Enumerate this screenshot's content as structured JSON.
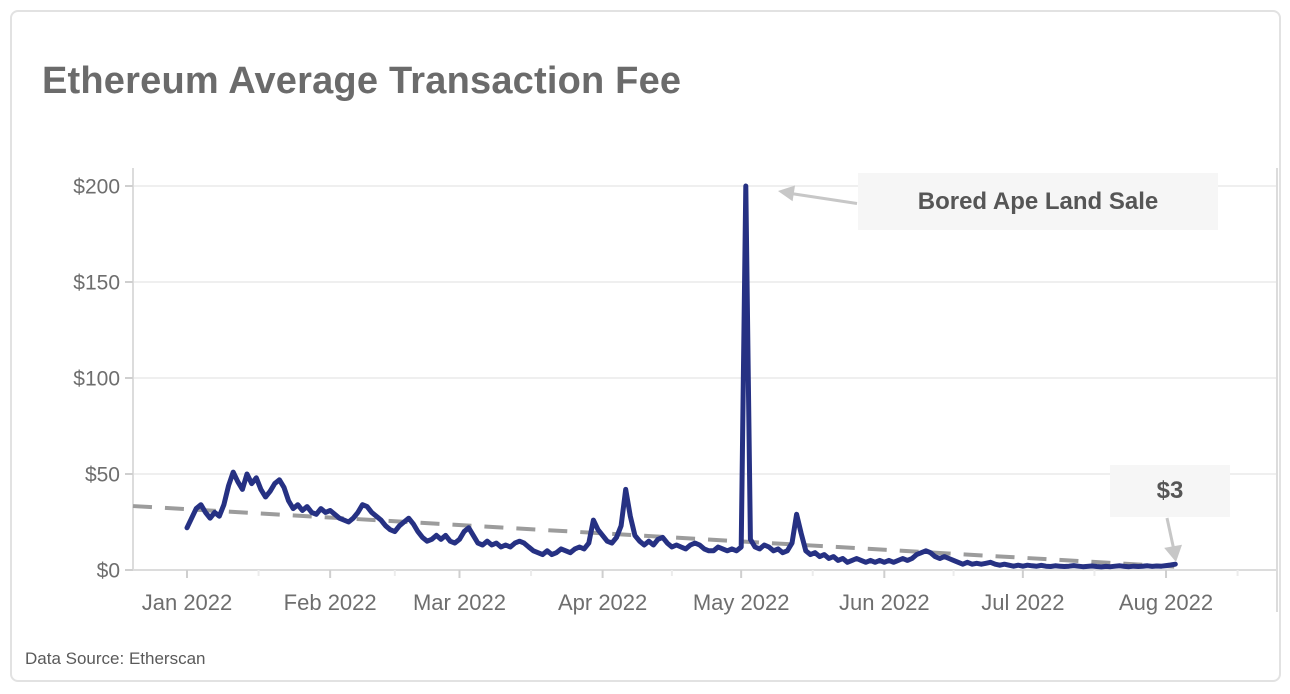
{
  "page": {
    "title": "Ethereum Average Transaction Fee",
    "source_note": "Data Source: Etherscan"
  },
  "annotations": {
    "spike_label": "Bored Ape Land Sale",
    "end_label": "$3"
  },
  "chart_data": {
    "type": "line",
    "title": "Ethereum Average Transaction Fee",
    "x_axis": {
      "unit": "date",
      "tick_labels": [
        "Jan 2022",
        "Feb 2022",
        "Mar 2022",
        "Apr 2022",
        "May 2022",
        "Jun 2022",
        "Jul 2022",
        "Aug 2022"
      ],
      "tick_day_offsets": [
        0,
        31,
        59,
        90,
        120,
        151,
        181,
        212
      ]
    },
    "y_axis": {
      "unit": "USD",
      "tick_labels": [
        "$0",
        "$50",
        "$100",
        "$150",
        "$200"
      ],
      "tick_values": [
        0,
        50,
        100,
        150,
        200
      ],
      "ylim": [
        0,
        200
      ]
    },
    "grid": "horizontal",
    "legend": "none",
    "series": [
      {
        "name": "Ethereum average transaction fee (USD per day)",
        "color": "#263183",
        "points": [
          [
            0,
            22
          ],
          [
            1,
            27
          ],
          [
            2,
            32
          ],
          [
            3,
            34
          ],
          [
            4,
            30
          ],
          [
            5,
            27
          ],
          [
            6,
            30
          ],
          [
            7,
            28
          ],
          [
            8,
            34
          ],
          [
            9,
            44
          ],
          [
            10,
            51
          ],
          [
            11,
            46
          ],
          [
            12,
            42
          ],
          [
            13,
            50
          ],
          [
            14,
            45
          ],
          [
            15,
            48
          ],
          [
            16,
            42
          ],
          [
            17,
            38
          ],
          [
            18,
            41
          ],
          [
            19,
            45
          ],
          [
            20,
            47
          ],
          [
            21,
            43
          ],
          [
            22,
            36
          ],
          [
            23,
            32
          ],
          [
            24,
            34
          ],
          [
            25,
            31
          ],
          [
            26,
            33
          ],
          [
            27,
            30
          ],
          [
            28,
            29
          ],
          [
            29,
            32
          ],
          [
            30,
            30
          ],
          [
            31,
            31
          ],
          [
            32,
            29
          ],
          [
            33,
            27
          ],
          [
            34,
            26
          ],
          [
            35,
            25
          ],
          [
            36,
            27
          ],
          [
            37,
            30
          ],
          [
            38,
            34
          ],
          [
            39,
            33
          ],
          [
            40,
            30
          ],
          [
            41,
            28
          ],
          [
            42,
            26
          ],
          [
            43,
            23
          ],
          [
            44,
            21
          ],
          [
            45,
            20
          ],
          [
            46,
            23
          ],
          [
            47,
            25
          ],
          [
            48,
            27
          ],
          [
            49,
            24
          ],
          [
            50,
            20
          ],
          [
            51,
            17
          ],
          [
            52,
            15
          ],
          [
            53,
            16
          ],
          [
            54,
            18
          ],
          [
            55,
            16
          ],
          [
            56,
            18
          ],
          [
            57,
            15
          ],
          [
            58,
            14
          ],
          [
            59,
            16
          ],
          [
            60,
            20
          ],
          [
            61,
            22
          ],
          [
            62,
            18
          ],
          [
            63,
            14
          ],
          [
            64,
            13
          ],
          [
            65,
            15
          ],
          [
            66,
            13
          ],
          [
            67,
            14
          ],
          [
            68,
            12
          ],
          [
            69,
            13
          ],
          [
            70,
            12
          ],
          [
            71,
            14
          ],
          [
            72,
            15
          ],
          [
            73,
            14
          ],
          [
            74,
            12
          ],
          [
            75,
            10
          ],
          [
            76,
            9
          ],
          [
            77,
            8
          ],
          [
            78,
            10
          ],
          [
            79,
            8
          ],
          [
            80,
            9
          ],
          [
            81,
            11
          ],
          [
            82,
            10
          ],
          [
            83,
            9
          ],
          [
            84,
            11
          ],
          [
            85,
            12
          ],
          [
            86,
            11
          ],
          [
            87,
            14
          ],
          [
            88,
            26
          ],
          [
            89,
            21
          ],
          [
            90,
            18
          ],
          [
            91,
            15
          ],
          [
            92,
            14
          ],
          [
            93,
            17
          ],
          [
            94,
            23
          ],
          [
            95,
            42
          ],
          [
            96,
            28
          ],
          [
            97,
            18
          ],
          [
            98,
            15
          ],
          [
            99,
            13
          ],
          [
            100,
            15
          ],
          [
            101,
            13
          ],
          [
            102,
            16
          ],
          [
            103,
            17
          ],
          [
            104,
            14
          ],
          [
            105,
            12
          ],
          [
            106,
            13
          ],
          [
            107,
            12
          ],
          [
            108,
            11
          ],
          [
            109,
            13
          ],
          [
            110,
            14
          ],
          [
            111,
            13
          ],
          [
            112,
            11
          ],
          [
            113,
            10
          ],
          [
            114,
            10
          ],
          [
            115,
            12
          ],
          [
            116,
            11
          ],
          [
            117,
            10
          ],
          [
            118,
            11
          ],
          [
            119,
            10
          ],
          [
            120,
            12
          ],
          [
            121,
            200
          ],
          [
            122,
            16
          ],
          [
            123,
            12
          ],
          [
            124,
            11
          ],
          [
            125,
            13
          ],
          [
            126,
            12
          ],
          [
            127,
            10
          ],
          [
            128,
            11
          ],
          [
            129,
            9
          ],
          [
            130,
            10
          ],
          [
            131,
            14
          ],
          [
            132,
            29
          ],
          [
            133,
            19
          ],
          [
            134,
            10
          ],
          [
            135,
            8
          ],
          [
            136,
            9
          ],
          [
            137,
            7
          ],
          [
            138,
            8
          ],
          [
            139,
            6
          ],
          [
            140,
            7
          ],
          [
            141,
            5
          ],
          [
            142,
            6
          ],
          [
            143,
            4
          ],
          [
            144,
            5
          ],
          [
            145,
            6
          ],
          [
            146,
            5
          ],
          [
            147,
            4
          ],
          [
            148,
            5
          ],
          [
            149,
            4
          ],
          [
            150,
            5
          ],
          [
            151,
            4
          ],
          [
            152,
            5
          ],
          [
            153,
            4
          ],
          [
            154,
            5
          ],
          [
            155,
            6
          ],
          [
            156,
            5
          ],
          [
            157,
            6
          ],
          [
            158,
            8
          ],
          [
            159,
            9
          ],
          [
            160,
            10
          ],
          [
            161,
            9
          ],
          [
            162,
            7
          ],
          [
            163,
            6
          ],
          [
            164,
            7
          ],
          [
            165,
            6
          ],
          [
            166,
            5
          ],
          [
            167,
            4
          ],
          [
            168,
            3
          ],
          [
            169,
            4
          ],
          [
            170,
            3
          ],
          [
            171,
            3.5
          ],
          [
            172,
            3
          ],
          [
            173,
            3.5
          ],
          [
            174,
            4
          ],
          [
            175,
            3
          ],
          [
            176,
            2.5
          ],
          [
            177,
            3
          ],
          [
            178,
            2.5
          ],
          [
            179,
            2
          ],
          [
            180,
            2.5
          ],
          [
            181,
            2
          ],
          [
            182,
            2.5
          ],
          [
            183,
            2.2
          ],
          [
            184,
            2
          ],
          [
            185,
            2.4
          ],
          [
            186,
            2
          ],
          [
            187,
            1.8
          ],
          [
            188,
            2.2
          ],
          [
            189,
            2
          ],
          [
            190,
            1.8
          ],
          [
            191,
            2
          ],
          [
            192,
            2.3
          ],
          [
            193,
            2
          ],
          [
            194,
            1.7
          ],
          [
            195,
            1.9
          ],
          [
            196,
            2.1
          ],
          [
            197,
            1.8
          ],
          [
            198,
            1.6
          ],
          [
            199,
            1.9
          ],
          [
            200,
            1.7
          ],
          [
            201,
            2
          ],
          [
            202,
            2.2
          ],
          [
            203,
            1.9
          ],
          [
            204,
            1.7
          ],
          [
            205,
            2
          ],
          [
            206,
            1.8
          ],
          [
            207,
            2
          ],
          [
            208,
            2.2
          ],
          [
            209,
            1.9
          ],
          [
            210,
            2.1
          ],
          [
            211,
            2
          ],
          [
            212,
            2.3
          ],
          [
            213,
            2.6
          ],
          [
            214,
            3
          ]
        ]
      }
    ],
    "trend": {
      "type": "linear",
      "style": "dashed",
      "color": "#9c9c9c",
      "start_usd": 33.3,
      "end_usd": 1.6
    },
    "callouts": [
      {
        "label": "Bored Ape Land Sale",
        "target_day_offset": 121,
        "target_usd": 200
      },
      {
        "label": "$3",
        "target_day_offset": 214,
        "target_usd": 3
      }
    ]
  }
}
